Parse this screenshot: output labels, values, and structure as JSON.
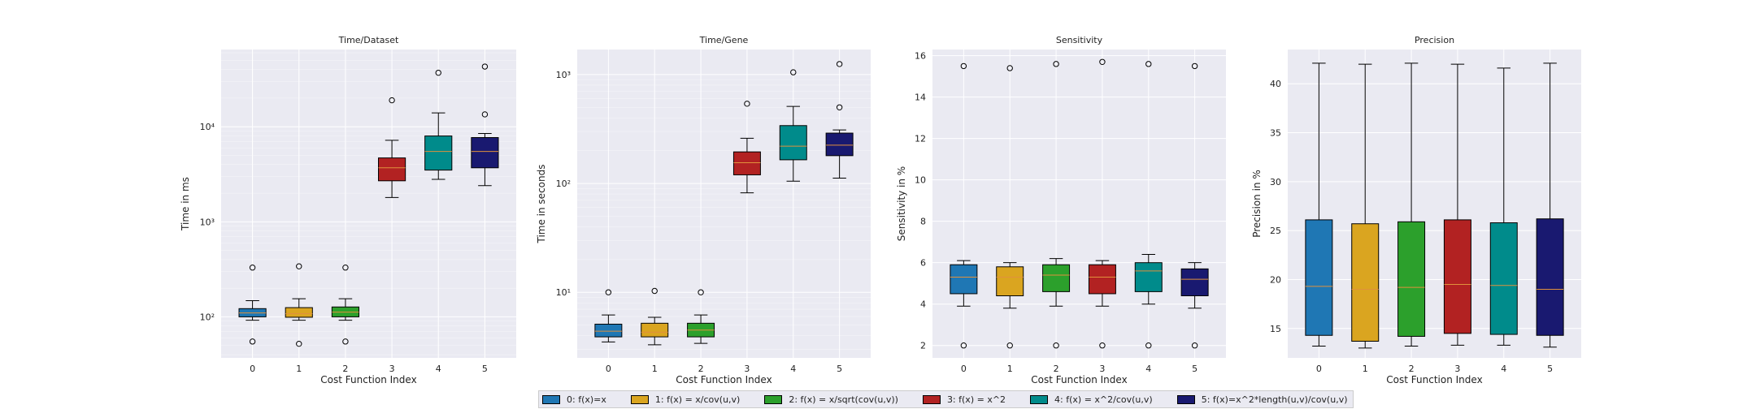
{
  "colors": {
    "panel_bg": "#eaeaf2",
    "grid": "#ffffff",
    "median": "#e0913c",
    "box_edge": "#000000",
    "text": "#222222"
  },
  "series": [
    {
      "index": "0",
      "legend": "0: f(x)=x",
      "color": "#1f77b4"
    },
    {
      "index": "1",
      "legend": "1: f(x) = x/cov(u,v)",
      "color": "#daa520"
    },
    {
      "index": "2",
      "legend": "2: f(x) = x/sqrt(cov(u,v))",
      "color": "#2ca02c"
    },
    {
      "index": "3",
      "legend": "3: f(x) = x^2",
      "color": "#b22222"
    },
    {
      "index": "4",
      "legend": "4: f(x) = x^2/cov(u,v)",
      "color": "#008b8b"
    },
    {
      "index": "5",
      "legend": "5: f(x)=x^2*length(u,v)/cov(u,v)",
      "color": "#191970"
    }
  ],
  "chart_data": [
    {
      "type": "box",
      "title": "Time/Dataset",
      "xlabel": "Cost Function Index",
      "ylabel": "Time in ms",
      "yscale": "log",
      "ylim": [
        37,
        65000
      ],
      "categories": [
        "0",
        "1",
        "2",
        "3",
        "4",
        "5"
      ],
      "boxes": [
        {
          "whislo": 92,
          "q1": 100,
          "med": 110,
          "q3": 122,
          "whishi": 148,
          "fliers": [
            330,
            55
          ]
        },
        {
          "whislo": 92,
          "q1": 99,
          "med": 108,
          "q3": 125,
          "whishi": 155,
          "fliers": [
            340,
            52
          ]
        },
        {
          "whislo": 92,
          "q1": 100,
          "med": 112,
          "q3": 127,
          "whishi": 155,
          "fliers": [
            330,
            55
          ]
        },
        {
          "whislo": 1800,
          "q1": 2700,
          "med": 3700,
          "q3": 4700,
          "whishi": 7200,
          "fliers": [
            19000
          ]
        },
        {
          "whislo": 2800,
          "q1": 3500,
          "med": 5500,
          "q3": 8000,
          "whishi": 14000,
          "fliers": [
            37000
          ]
        },
        {
          "whislo": 2400,
          "q1": 3700,
          "med": 5500,
          "q3": 7700,
          "whishi": 8500,
          "fliers": [
            43000,
            13500
          ]
        }
      ],
      "yticks": [
        {
          "value": 100,
          "label": "10²"
        },
        {
          "value": 1000,
          "label": "10³"
        },
        {
          "value": 10000,
          "label": "10⁴"
        }
      ]
    },
    {
      "type": "box",
      "title": "Time/Gene",
      "xlabel": "Cost Function Index",
      "ylabel": "Time in seconds",
      "yscale": "log",
      "ylim": [
        2.5,
        1700
      ],
      "categories": [
        "0",
        "1",
        "2",
        "3",
        "4",
        "5"
      ],
      "boxes": [
        {
          "whislo": 3.5,
          "q1": 3.9,
          "med": 4.4,
          "q3": 5.1,
          "whishi": 6.2,
          "fliers": [
            10
          ]
        },
        {
          "whislo": 3.3,
          "q1": 3.9,
          "med": 4.3,
          "q3": 5.2,
          "whishi": 5.9,
          "fliers": [
            10.3
          ]
        },
        {
          "whislo": 3.4,
          "q1": 3.9,
          "med": 4.5,
          "q3": 5.2,
          "whishi": 6.2,
          "fliers": [
            10
          ]
        },
        {
          "whislo": 82,
          "q1": 120,
          "med": 155,
          "q3": 195,
          "whishi": 260,
          "fliers": [
            540
          ]
        },
        {
          "whislo": 105,
          "q1": 165,
          "med": 220,
          "q3": 340,
          "whishi": 510,
          "fliers": [
            1050
          ]
        },
        {
          "whislo": 112,
          "q1": 180,
          "med": 225,
          "q3": 290,
          "whishi": 310,
          "fliers": [
            1250,
            500
          ]
        }
      ],
      "yticks": [
        {
          "value": 10,
          "label": "10¹"
        },
        {
          "value": 100,
          "label": "10²"
        },
        {
          "value": 1000,
          "label": "10³"
        }
      ]
    },
    {
      "type": "box",
      "title": "Sensitivity",
      "xlabel": "Cost Function Index",
      "ylabel": "Sensitivity in %",
      "yscale": "linear",
      "ylim": [
        1.4,
        16.3
      ],
      "categories": [
        "0",
        "1",
        "2",
        "3",
        "4",
        "5"
      ],
      "boxes": [
        {
          "whislo": 3.9,
          "q1": 4.5,
          "med": 5.3,
          "q3": 5.9,
          "whishi": 6.1,
          "fliers": [
            15.5,
            2.0
          ]
        },
        {
          "whislo": 3.8,
          "q1": 4.4,
          "med": 5.3,
          "q3": 5.8,
          "whishi": 6.0,
          "fliers": [
            15.4,
            2.0
          ]
        },
        {
          "whislo": 3.9,
          "q1": 4.6,
          "med": 5.4,
          "q3": 5.9,
          "whishi": 6.2,
          "fliers": [
            15.6,
            2.0
          ]
        },
        {
          "whislo": 3.9,
          "q1": 4.5,
          "med": 5.3,
          "q3": 5.9,
          "whishi": 6.1,
          "fliers": [
            15.7,
            2.0
          ]
        },
        {
          "whislo": 4.0,
          "q1": 4.6,
          "med": 5.6,
          "q3": 6.0,
          "whishi": 6.4,
          "fliers": [
            15.6,
            2.0
          ]
        },
        {
          "whislo": 3.8,
          "q1": 4.4,
          "med": 5.2,
          "q3": 5.7,
          "whishi": 6.0,
          "fliers": [
            15.5,
            2.0
          ]
        }
      ],
      "yticks": [
        {
          "value": 2,
          "label": "2"
        },
        {
          "value": 4,
          "label": "4"
        },
        {
          "value": 6,
          "label": "6"
        },
        {
          "value": 8,
          "label": "8"
        },
        {
          "value": 10,
          "label": "10"
        },
        {
          "value": 12,
          "label": "12"
        },
        {
          "value": 14,
          "label": "14"
        },
        {
          "value": 16,
          "label": "16"
        }
      ]
    },
    {
      "type": "box",
      "title": "Precision",
      "xlabel": "Cost Function Index",
      "ylabel": "Precision in %",
      "yscale": "linear",
      "ylim": [
        12.0,
        43.5
      ],
      "categories": [
        "0",
        "1",
        "2",
        "3",
        "4",
        "5"
      ],
      "boxes": [
        {
          "whislo": 13.2,
          "q1": 14.3,
          "med": 19.3,
          "q3": 26.1,
          "whishi": 42.1,
          "fliers": []
        },
        {
          "whislo": 13.0,
          "q1": 13.7,
          "med": 19.0,
          "q3": 25.7,
          "whishi": 42.0,
          "fliers": []
        },
        {
          "whislo": 13.2,
          "q1": 14.2,
          "med": 19.2,
          "q3": 25.9,
          "whishi": 42.1,
          "fliers": []
        },
        {
          "whislo": 13.3,
          "q1": 14.5,
          "med": 19.5,
          "q3": 26.1,
          "whishi": 42.0,
          "fliers": []
        },
        {
          "whislo": 13.3,
          "q1": 14.4,
          "med": 19.4,
          "q3": 25.8,
          "whishi": 41.6,
          "fliers": []
        },
        {
          "whislo": 13.1,
          "q1": 14.3,
          "med": 19.0,
          "q3": 26.2,
          "whishi": 42.1,
          "fliers": []
        }
      ],
      "yticks": [
        {
          "value": 15,
          "label": "15"
        },
        {
          "value": 20,
          "label": "20"
        },
        {
          "value": 25,
          "label": "25"
        },
        {
          "value": 30,
          "label": "30"
        },
        {
          "value": 35,
          "label": "35"
        },
        {
          "value": 40,
          "label": "40"
        }
      ]
    }
  ]
}
